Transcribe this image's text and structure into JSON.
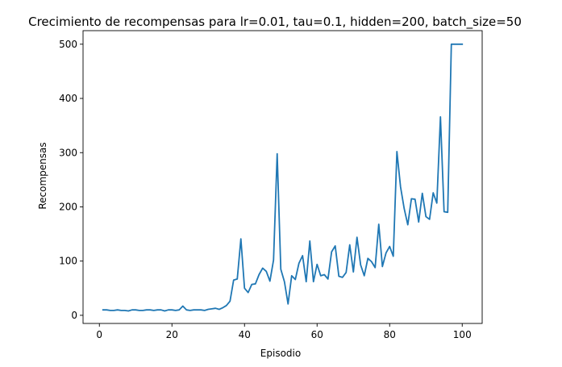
{
  "chart_data": {
    "type": "line",
    "title": "Crecimiento de recompensas para lr=0.01, tau=0.1, hidden=200, batch_size=50",
    "xlabel": "Episodio",
    "ylabel": "Recompensas",
    "xlim": [
      -4.5,
      105.5
    ],
    "ylim": [
      -15,
      525
    ],
    "xticks": [
      0,
      20,
      40,
      60,
      80,
      100
    ],
    "yticks": [
      0,
      100,
      200,
      300,
      400,
      500
    ],
    "grid": false,
    "legend": "none",
    "line_color": "#1f77b4",
    "series": [
      {
        "x": [
          1,
          2,
          3,
          4,
          5,
          6,
          7,
          8,
          9,
          10,
          11,
          12,
          13,
          14,
          15,
          16,
          17,
          18,
          19,
          20,
          21,
          22,
          23,
          24,
          25,
          26,
          27,
          28,
          29,
          30,
          31,
          32,
          33,
          34,
          35,
          36,
          37,
          38,
          39,
          40,
          41,
          42,
          43,
          44,
          45,
          46,
          47,
          48,
          49,
          50,
          51,
          52,
          53,
          54,
          55,
          56,
          57,
          58,
          59,
          60,
          61,
          62,
          63,
          64,
          65,
          66,
          67,
          68,
          69,
          70,
          71,
          72,
          73,
          74,
          75,
          76,
          77,
          78,
          79,
          80,
          81,
          82,
          83,
          84,
          85,
          86,
          87,
          88,
          89,
          90,
          91,
          92,
          93,
          94,
          95,
          96,
          97,
          98,
          99,
          100
        ],
        "y": [
          10,
          10,
          9,
          9,
          10,
          9,
          9,
          8,
          10,
          10,
          9,
          9,
          10,
          10,
          9,
          10,
          10,
          8,
          10,
          10,
          9,
          10,
          17,
          10,
          9,
          10,
          10,
          10,
          9,
          11,
          12,
          13,
          11,
          14,
          18,
          26,
          65,
          67,
          141,
          50,
          42,
          57,
          58,
          75,
          87,
          81,
          63,
          102,
          298,
          85,
          62,
          21,
          73,
          66,
          96,
          110,
          62,
          137,
          62,
          94,
          73,
          75,
          67,
          117,
          128,
          72,
          70,
          79,
          130,
          80,
          144,
          93,
          73,
          105,
          99,
          88,
          168,
          90,
          115,
          127,
          109,
          302,
          237,
          197,
          167,
          215,
          214,
          172,
          225,
          182,
          177,
          226,
          207,
          366,
          191,
          190,
          500,
          500,
          500,
          500
        ]
      }
    ]
  }
}
